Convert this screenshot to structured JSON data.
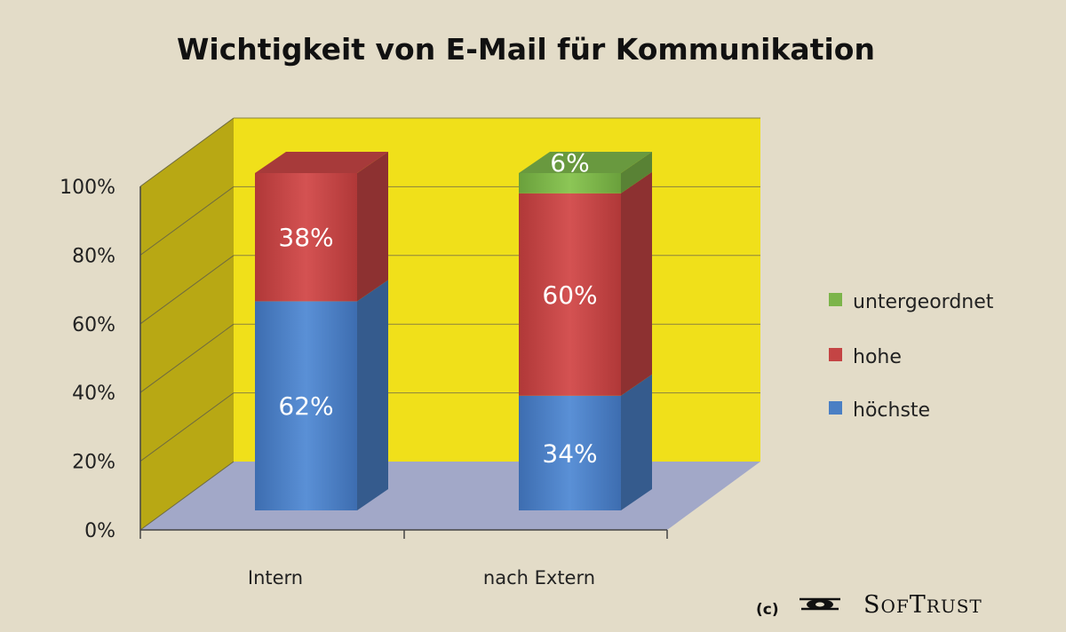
{
  "chart_data": {
    "type": "bar",
    "stacked": true,
    "three_d": true,
    "title": "Wichtigkeit von E-Mail für Kommunikation",
    "categories": [
      "Intern",
      "nach Extern"
    ],
    "series": [
      {
        "name": "höchste",
        "values": [
          62,
          34
        ],
        "labels": [
          "62%",
          "34%"
        ],
        "color": "#4a7fc4"
      },
      {
        "name": "hohe",
        "values": [
          38,
          60
        ],
        "labels": [
          "38%",
          "60%"
        ],
        "color": "#c44444"
      },
      {
        "name": "untergeordnet",
        "values": [
          0,
          6
        ],
        "labels": [
          "",
          "6%"
        ],
        "color": "#7cb44a"
      }
    ],
    "legend_order": [
      "untergeordnet",
      "hohe",
      "höchste"
    ],
    "y_ticks": [
      "0%",
      "20%",
      "40%",
      "60%",
      "80%",
      "100%"
    ],
    "ylim": [
      0,
      100
    ],
    "grid": true,
    "legend_position": "right",
    "back_wall_color": "#f0e01a",
    "side_wall_color": "#b8a814",
    "floor_color": "#a2a8c8"
  },
  "footer": {
    "copyright": "(c)",
    "brand_initial_1": "S",
    "brand_rest_1": "OF",
    "brand_initial_2": "T",
    "brand_rest_2": "RUST"
  }
}
